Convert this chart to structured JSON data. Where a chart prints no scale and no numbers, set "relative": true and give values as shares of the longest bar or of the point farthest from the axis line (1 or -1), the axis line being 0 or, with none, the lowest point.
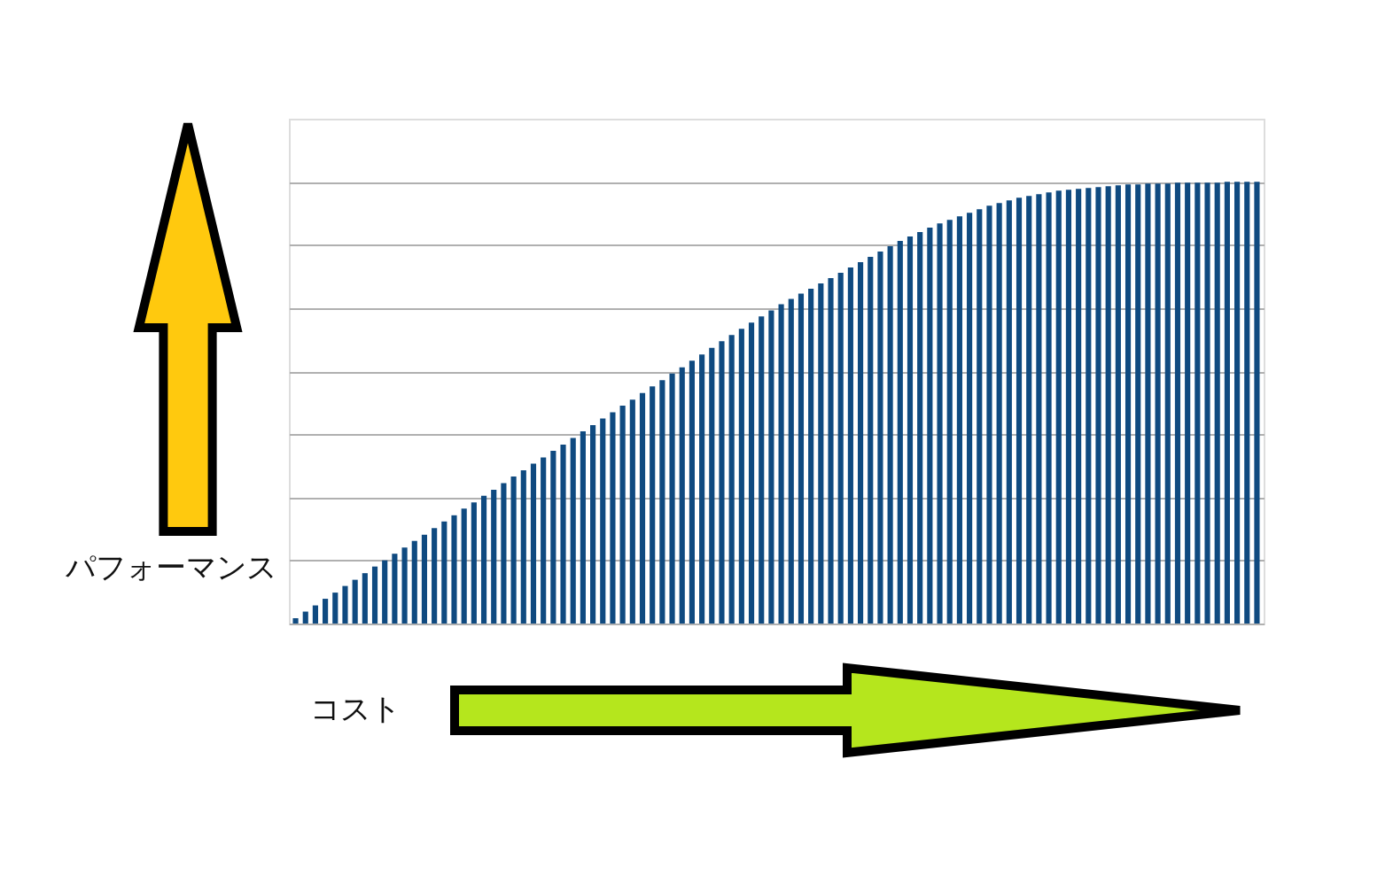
{
  "chart_data": {
    "type": "bar",
    "relative": true,
    "xlabel": "コスト",
    "ylabel": "パフォーマンス",
    "color": "#0f4a80",
    "grid": "y",
    "categories": [
      null,
      null,
      null,
      null,
      null,
      null,
      null,
      null,
      null,
      null,
      null,
      null,
      null,
      null,
      null,
      null,
      null,
      null,
      null,
      null,
      null,
      null,
      null,
      null,
      null,
      null,
      null,
      null,
      null,
      null,
      null,
      null,
      null,
      null,
      null,
      null,
      null,
      null,
      null,
      null,
      null,
      null,
      null,
      null,
      null,
      null,
      null,
      null,
      null,
      null,
      null,
      null,
      null,
      null,
      null,
      null,
      null,
      null,
      null,
      null,
      null,
      null,
      null,
      null,
      null,
      null,
      null,
      null,
      null,
      null,
      null,
      null,
      null,
      null,
      null,
      null,
      null,
      null,
      null,
      null,
      null,
      null,
      null,
      null,
      null,
      null,
      null,
      null,
      null,
      null,
      null,
      null,
      null,
      null,
      null,
      null,
      null,
      null
    ],
    "values": [
      0.012,
      0.027,
      0.041,
      0.056,
      0.07,
      0.085,
      0.099,
      0.114,
      0.129,
      0.143,
      0.158,
      0.172,
      0.187,
      0.201,
      0.216,
      0.231,
      0.245,
      0.26,
      0.274,
      0.289,
      0.303,
      0.318,
      0.333,
      0.347,
      0.362,
      0.376,
      0.391,
      0.405,
      0.42,
      0.435,
      0.449,
      0.464,
      0.478,
      0.493,
      0.507,
      0.522,
      0.537,
      0.551,
      0.566,
      0.58,
      0.595,
      0.609,
      0.624,
      0.639,
      0.653,
      0.667,
      0.681,
      0.695,
      0.709,
      0.723,
      0.735,
      0.747,
      0.758,
      0.77,
      0.782,
      0.794,
      0.806,
      0.818,
      0.83,
      0.842,
      0.854,
      0.866,
      0.876,
      0.886,
      0.896,
      0.906,
      0.914,
      0.922,
      0.93,
      0.938,
      0.946,
      0.952,
      0.958,
      0.964,
      0.968,
      0.972,
      0.976,
      0.98,
      0.982,
      0.984,
      0.986,
      0.988,
      0.99,
      0.992,
      0.994,
      0.994,
      0.996,
      0.996,
      0.996,
      0.998,
      0.998,
      0.998,
      0.998,
      0.998,
      1,
      1,
      1,
      1
    ]
  }
}
